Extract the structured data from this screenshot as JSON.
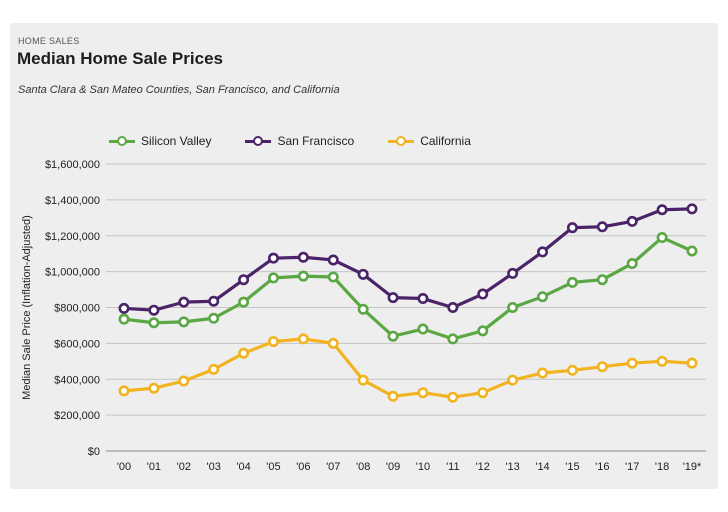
{
  "header": {
    "kicker": "HOME SALES",
    "title": "Median Home Sale Prices",
    "subtitle": "Santa Clara & San Mateo Counties, San Francisco, and California"
  },
  "chart_data": {
    "type": "line",
    "title": "Median Home Sale Prices",
    "subtitle": "Santa Clara & San Mateo Counties, San Francisco, and California",
    "xlabel": "",
    "ylabel": "Median Sale Price (Inflation-Adjusted)",
    "categories": [
      "'00",
      "'01",
      "'02",
      "'03",
      "'04",
      "'05",
      "'06",
      "'07",
      "'08",
      "'09",
      "'10",
      "'11",
      "'12",
      "'13",
      "'14",
      "'15",
      "'16",
      "'17",
      "'18",
      "'19*"
    ],
    "ylim": [
      0,
      1600000
    ],
    "yticks": [
      0,
      200000,
      400000,
      600000,
      800000,
      1000000,
      1200000,
      1400000,
      1600000
    ],
    "ytick_labels": [
      "$0",
      "$200,000",
      "$400,000",
      "$600,000",
      "$800,000",
      "$1,000,000",
      "$1,200,000",
      "$1,400,000",
      "$1,600,000"
    ],
    "grid": "horizontal",
    "legend_position": "top",
    "series": [
      {
        "name": "Silicon Valley",
        "color": "#5aa743",
        "values": [
          735000,
          715000,
          720000,
          740000,
          830000,
          965000,
          975000,
          970000,
          790000,
          640000,
          680000,
          625000,
          670000,
          800000,
          860000,
          940000,
          955000,
          1045000,
          1190000,
          1115000
        ]
      },
      {
        "name": "San Francisco",
        "color": "#4b2369",
        "values": [
          795000,
          785000,
          830000,
          835000,
          955000,
          1075000,
          1080000,
          1065000,
          985000,
          855000,
          850000,
          800000,
          875000,
          990000,
          1110000,
          1245000,
          1250000,
          1280000,
          1345000,
          1350000
        ]
      },
      {
        "name": "California",
        "color": "#f2b320",
        "values": [
          335000,
          350000,
          390000,
          455000,
          545000,
          610000,
          625000,
          600000,
          395000,
          305000,
          325000,
          300000,
          325000,
          395000,
          435000,
          450000,
          470000,
          490000,
          500000,
          490000
        ]
      }
    ]
  }
}
